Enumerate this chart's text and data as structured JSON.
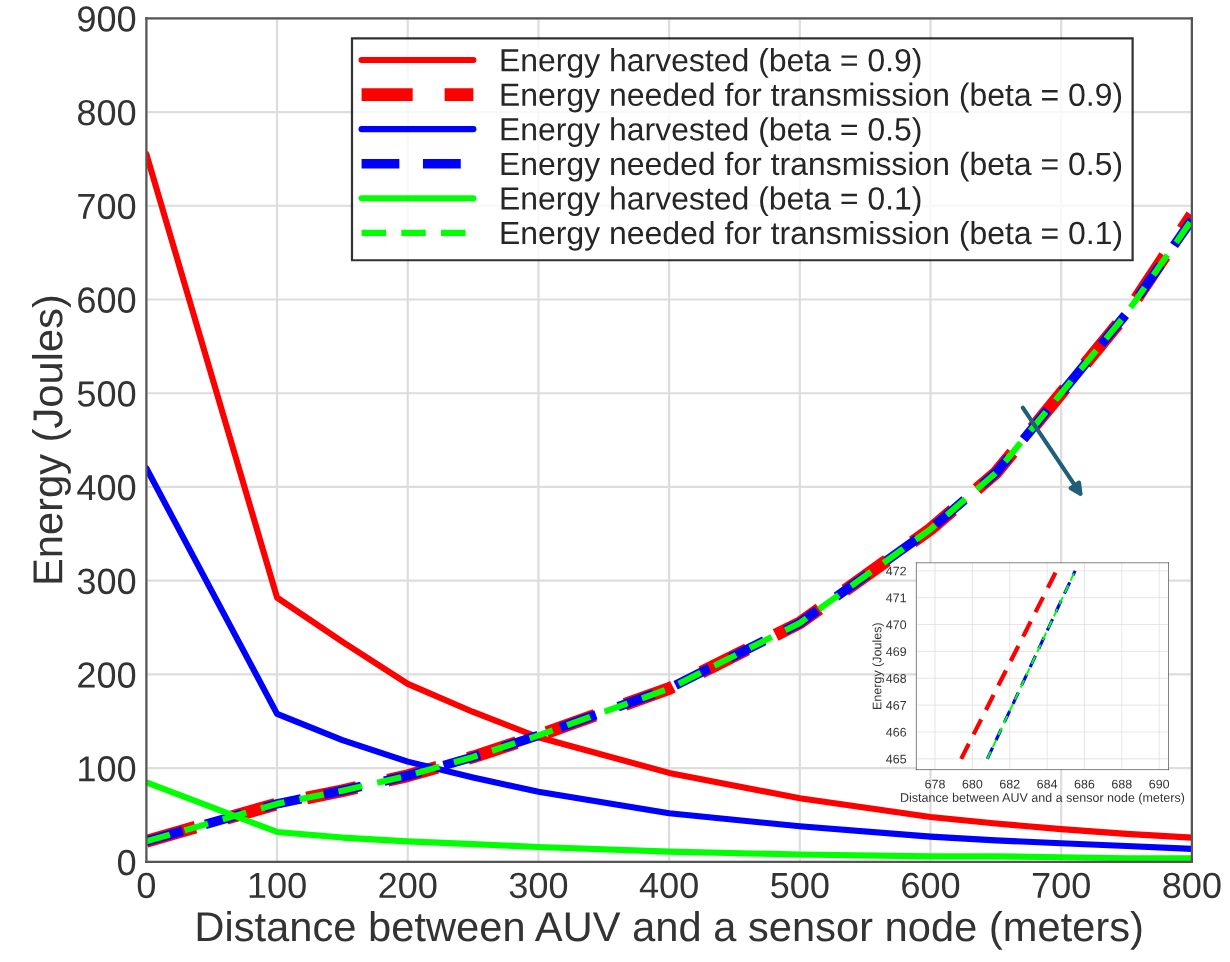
{
  "chart_data": [
    {
      "type": "line",
      "xlabel": "Distance between AUV and a sensor node (meters)",
      "ylabel": "Energy (Joules)",
      "xlim": [
        0,
        800
      ],
      "ylim": [
        0,
        900
      ],
      "xticks": [
        0,
        100,
        200,
        300,
        400,
        500,
        600,
        700,
        800
      ],
      "yticks": [
        0,
        100,
        200,
        300,
        400,
        500,
        600,
        700,
        800,
        900
      ],
      "grid": true,
      "legend": "top",
      "x": [
        0,
        100,
        150,
        200,
        250,
        300,
        400,
        500,
        600,
        650,
        700,
        750,
        800
      ],
      "series": [
        {
          "name": "Energy harvested (beta = 0.9)",
          "color": "#ff0000",
          "line_style": "solid",
          "values": [
            755,
            282,
            235,
            190,
            160,
            133,
            95,
            68,
            48,
            41,
            35,
            30,
            26
          ]
        },
        {
          "name": "Energy needed for transmission (beta = 0.9)",
          "color": "#ff0000",
          "line_style": "dashed",
          "values": [
            22,
            62,
            76,
            92,
            112,
            135,
            185,
            255,
            355,
            415,
            500,
            585,
            690
          ]
        },
        {
          "name": "Energy harvested (beta = 0.5)",
          "color": "#0000ff",
          "line_style": "solid",
          "values": [
            420,
            158,
            130,
            107,
            90,
            75,
            52,
            38,
            27,
            23,
            20,
            17,
            14
          ]
        },
        {
          "name": "Energy needed for transmission (beta = 0.5)",
          "color": "#0000ff",
          "line_style": "dashed",
          "values": [
            22,
            62,
            76,
            92,
            112,
            135,
            185,
            255,
            355,
            415,
            500,
            585,
            685
          ]
        },
        {
          "name": "Energy harvested (beta = 0.1)",
          "color": "#00ff00",
          "line_style": "solid",
          "values": [
            85,
            32,
            26,
            22,
            19,
            16,
            11,
            8,
            6,
            6,
            5,
            4,
            4
          ]
        },
        {
          "name": "Energy needed for transmission (beta = 0.1)",
          "color": "#00ff00",
          "line_style": "dashed",
          "values": [
            22,
            62,
            76,
            92,
            112,
            135,
            185,
            255,
            355,
            415,
            500,
            585,
            685
          ]
        }
      ]
    },
    {
      "type": "line",
      "xlabel": "Distance between AUV and a sensor node (meters)",
      "ylabel": "Energy (Joules)",
      "xlim": [
        677,
        690.5
      ],
      "ylim": [
        464.6,
        472.3
      ],
      "xticks": [
        678,
        680,
        682,
        684,
        686,
        688,
        690
      ],
      "yticks": [
        465,
        466,
        467,
        468,
        469,
        470,
        471,
        472
      ],
      "grid": true,
      "series": [
        {
          "color": "#ff0000",
          "line_style": "dashed",
          "x": [
            679.4,
            684.5
          ],
          "values": [
            465,
            472
          ]
        },
        {
          "color": "#0000ff",
          "line_style": "dashed",
          "x": [
            680.8,
            685.5
          ],
          "values": [
            465,
            472
          ]
        },
        {
          "color": "#00ff00",
          "line_style": "dashed",
          "x": [
            680.8,
            685.5
          ],
          "values": [
            465,
            472
          ]
        }
      ]
    }
  ]
}
